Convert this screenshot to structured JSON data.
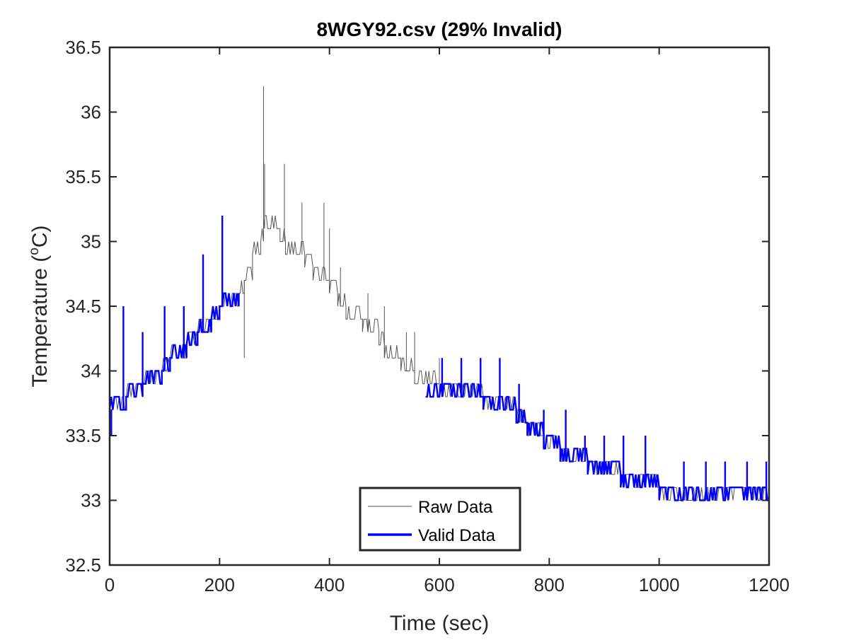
{
  "chart_data": {
    "type": "line",
    "title": "8WGY92.csv (29% Invalid)",
    "xlabel": "Time (sec)",
    "ylabel_main": "Temperature (",
    "ylabel_sup": "o",
    "ylabel_end": "C)",
    "xlim": [
      0,
      1200
    ],
    "ylim": [
      32.5,
      36.5
    ],
    "xticks": [
      0,
      200,
      400,
      600,
      800,
      1000,
      1200
    ],
    "xtick_labels": [
      "0",
      "200",
      "400",
      "600",
      "800",
      "1000",
      "1200"
    ],
    "yticks": [
      32.5,
      33,
      33.5,
      34,
      34.5,
      35,
      35.5,
      36,
      36.5
    ],
    "ytick_labels": [
      "32.5",
      "33",
      "33.5",
      "34",
      "34.5",
      "35",
      "35.5",
      "36",
      "36.5"
    ],
    "grid": false,
    "legend_position": "bottom-center",
    "series": [
      {
        "name": "Raw Data",
        "color": "#555555",
        "line_width": "thin",
        "x": [
          0,
          20,
          30,
          45,
          60,
          80,
          95,
          110,
          125,
          140,
          160,
          170,
          185,
          200,
          205,
          220,
          235,
          245,
          260,
          275,
          280,
          290,
          310,
          320,
          340,
          355,
          370,
          385,
          400,
          415,
          420,
          430,
          440,
          460,
          470,
          480,
          490,
          500,
          520,
          530,
          540,
          555,
          570,
          600,
          640,
          680,
          700,
          740,
          760,
          790,
          820,
          840,
          870,
          900,
          930,
          960,
          1000,
          1040,
          1080,
          1120,
          1160,
          1200
        ],
        "y": [
          33.7,
          33.7,
          33.8,
          33.8,
          33.9,
          33.9,
          34.0,
          34.1,
          34.1,
          34.2,
          34.3,
          34.3,
          34.4,
          34.5,
          34.5,
          34.5,
          34.6,
          34.7,
          34.9,
          35.0,
          35.1,
          35.1,
          35.0,
          34.9,
          34.9,
          34.8,
          34.7,
          34.7,
          34.6,
          34.5,
          34.5,
          34.4,
          34.4,
          34.3,
          34.3,
          34.3,
          34.2,
          34.1,
          34.1,
          34.0,
          34.0,
          33.9,
          33.9,
          33.8,
          33.8,
          33.7,
          33.7,
          33.6,
          33.5,
          33.4,
          33.3,
          33.3,
          33.2,
          33.2,
          33.1,
          33.1,
          33.0,
          33.0,
          33.0,
          33.0,
          33.0,
          33.0
        ],
        "spikes": [
          [
            245,
            34.1
          ],
          [
            280,
            36.2
          ],
          [
            282,
            35.6
          ],
          [
            318,
            35.6
          ],
          [
            350,
            35.3
          ],
          [
            390,
            35.3
          ],
          [
            400,
            35.1
          ],
          [
            420,
            34.8
          ],
          [
            470,
            34.6
          ],
          [
            500,
            34.5
          ],
          [
            540,
            34.3
          ],
          [
            555,
            34.3
          ],
          [
            600,
            34.1
          ]
        ]
      },
      {
        "name": "Valid Data",
        "color": "#0000ff",
        "line_width": "thick",
        "segments": [
          {
            "x": [
              0,
              20,
              30,
              45,
              60,
              80,
              95,
              110,
              125,
              140,
              160,
              170,
              185,
              200,
              205,
              220,
              235
            ],
            "y": [
              33.7,
              33.7,
              33.8,
              33.8,
              33.9,
              33.9,
              34.0,
              34.1,
              34.1,
              34.2,
              34.3,
              34.3,
              34.4,
              34.5,
              34.5,
              34.5,
              34.6
            ]
          },
          {
            "x": [
              575,
              600,
              640,
              680,
              700,
              740,
              760,
              790,
              820,
              840,
              870,
              900,
              930,
              960,
              1000,
              1040,
              1080,
              1120,
              1160,
              1200
            ],
            "y": [
              33.8,
              33.8,
              33.8,
              33.7,
              33.7,
              33.6,
              33.5,
              33.4,
              33.3,
              33.3,
              33.2,
              33.2,
              33.1,
              33.1,
              33.0,
              33.0,
              33.0,
              33.0,
              33.0,
              33.0
            ]
          }
        ],
        "spikes": [
          [
            3,
            33.5
          ],
          [
            25,
            34.5
          ],
          [
            60,
            34.3
          ],
          [
            100,
            34.5
          ],
          [
            135,
            34.5
          ],
          [
            170,
            34.9
          ],
          [
            205,
            35.2
          ],
          [
            605,
            34.1
          ],
          [
            640,
            34.1
          ],
          [
            675,
            34.1
          ],
          [
            710,
            34.1
          ],
          [
            745,
            33.9
          ],
          [
            790,
            33.7
          ],
          [
            830,
            33.7
          ],
          [
            865,
            33.5
          ],
          [
            900,
            33.5
          ],
          [
            935,
            33.5
          ],
          [
            975,
            33.5
          ],
          [
            1045,
            33.3
          ],
          [
            1085,
            33.3
          ],
          [
            1120,
            33.3
          ],
          [
            1160,
            33.3
          ],
          [
            1195,
            33.3
          ]
        ]
      }
    ]
  }
}
